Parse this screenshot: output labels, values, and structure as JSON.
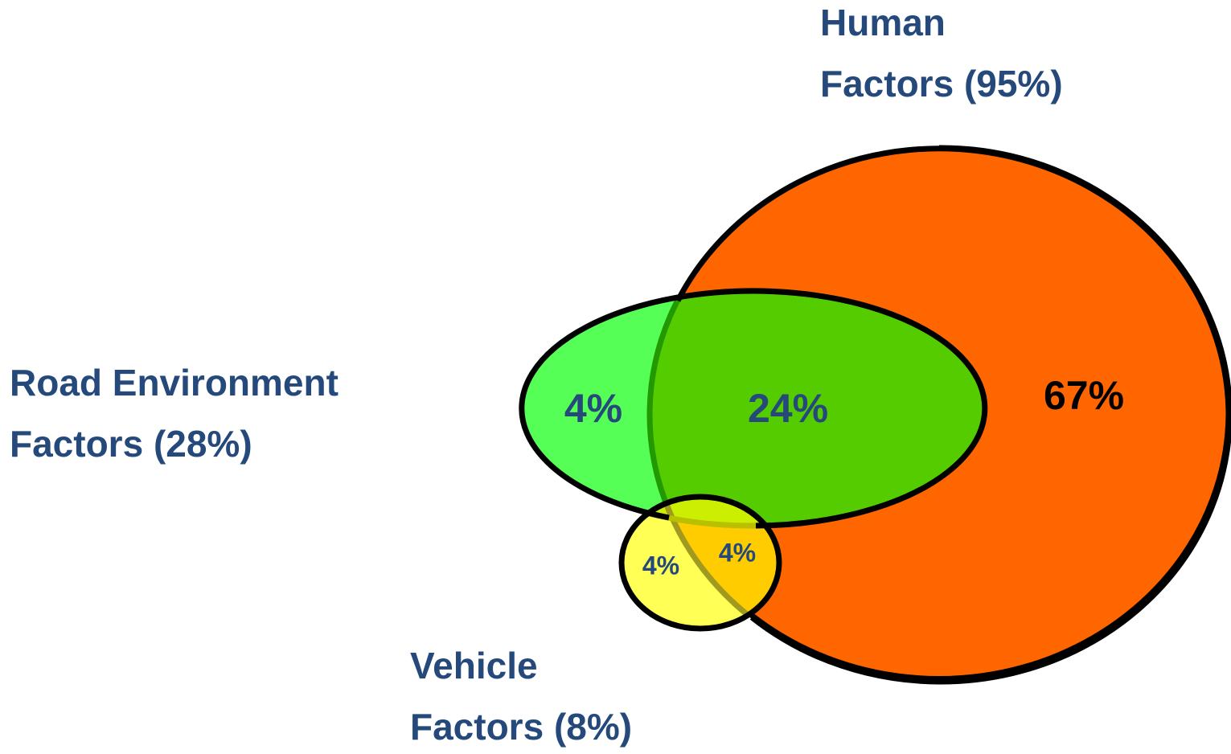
{
  "sets": [
    {
      "label": [
        "Human",
        "Factors (95%)"
      ]
    },
    {
      "label": [
        "Road Environment",
        "Factors (28%)"
      ]
    },
    {
      "label": [
        "Vehicle",
        "Factors (8%)"
      ]
    }
  ],
  "regions": {
    "road_only": "4%",
    "road_human": "24%",
    "human_only": "67%",
    "vehicle_only": "4%",
    "vehicle_human": "4%"
  }
}
